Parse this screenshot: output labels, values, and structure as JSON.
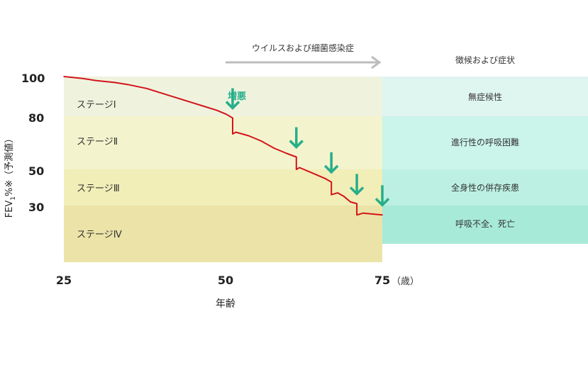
{
  "colors": {
    "stage_bands": [
      "#eff3de",
      "#f3f4cd",
      "#f1eeb8",
      "#ece3a8"
    ],
    "symptom_bands": [
      "#dff5ef",
      "#cbf4ea",
      "#bcf0e2",
      "#a7ead7"
    ],
    "line": "#d3141c",
    "arrow": "#27ae8a",
    "infection_arrow": "#bdbdbd"
  },
  "infection_label": "ウイルスおよび細菌感染症",
  "symptom_header": "徴候および症状",
  "exacerbation_label": "増悪",
  "x_unit": "（歳）",
  "chart_data": {
    "type": "line",
    "xlabel": "年齢",
    "ylabel": "FEV1%※（予測値）",
    "ylabel_parts": {
      "main": "FEV",
      "sub": "1",
      "rest": "%※（予測値）"
    },
    "x_ticks": [
      "25",
      "50",
      "75"
    ],
    "y_ticks": [
      "100",
      "80",
      "50",
      "30"
    ],
    "xlim": [
      25,
      75
    ],
    "stages": [
      {
        "label": "ステージⅠ",
        "symptom": "無症候性"
      },
      {
        "label": "ステージⅡ",
        "symptom": "進行性の呼吸困難"
      },
      {
        "label": "ステージⅢ",
        "symptom": "全身性の併存疾患"
      },
      {
        "label": "ステージⅣ",
        "symptom": "呼吸不全、死亡"
      }
    ],
    "exacerbation_ages": [
      51.5,
      61.5,
      67,
      71,
      75
    ],
    "series": [
      {
        "points": [
          [
            25,
            100
          ],
          [
            28,
            99
          ],
          [
            30,
            98
          ],
          [
            33,
            97
          ],
          [
            35,
            96
          ],
          [
            38,
            94
          ],
          [
            40,
            92
          ],
          [
            43,
            89
          ],
          [
            45,
            87
          ],
          [
            47,
            85
          ],
          [
            49,
            83
          ],
          [
            50.5,
            81
          ],
          [
            51.5,
            79
          ],
          [
            51.5,
            70
          ],
          [
            52,
            71
          ],
          [
            54,
            69
          ],
          [
            56,
            66
          ],
          [
            58,
            62
          ],
          [
            60,
            59
          ],
          [
            61.5,
            57
          ],
          [
            61.5,
            50
          ],
          [
            62,
            51
          ],
          [
            64,
            48
          ],
          [
            66,
            45
          ],
          [
            67,
            43
          ],
          [
            67,
            36
          ],
          [
            68,
            37
          ],
          [
            69,
            35
          ],
          [
            70,
            32
          ],
          [
            71,
            31
          ],
          [
            71,
            25
          ],
          [
            72,
            26
          ],
          [
            73.5,
            25.5
          ],
          [
            75,
            25
          ]
        ]
      }
    ]
  }
}
